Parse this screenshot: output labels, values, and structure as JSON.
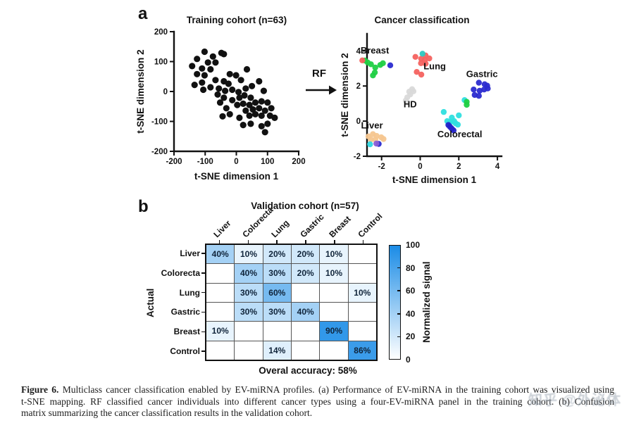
{
  "panel_a": {
    "label": "a",
    "rf_label": "RF"
  },
  "panel_b": {
    "label": "b"
  },
  "watermark": {
    "text": "知乎 @外泌体"
  },
  "caption": {
    "figure_label": "Figure 6.",
    "line1": "Multiclass cancer classification enabled by EV-miRNA profiles. (a) Performance of EV-miRNA in the training cohort was visualized using",
    "line2": "t-SNE mapping. RF classified cancer individuals into different cancer types using a four-EV-miRNA panel in the training cohort. (b) Confusion",
    "line3": "matrix summarizing the cancer classification results in the validation cohort."
  },
  "chart_data": [
    {
      "id": "training",
      "type": "scatter",
      "title": "Training cohort (n=63)",
      "xlabel": "t-SNE dimension 1",
      "ylabel": "t-SNE dimension 2",
      "xlim": [
        -200,
        200
      ],
      "ylim": [
        -200,
        200
      ],
      "x_ticks": [
        -200,
        -100,
        0,
        100,
        200
      ],
      "y_ticks": [
        200,
        100,
        0,
        -100,
        -200
      ],
      "series": [
        {
          "name": "samples",
          "color": "#111111",
          "points": [
            [
              -102,
              133
            ],
            [
              -48,
              129
            ],
            [
              -40,
              125
            ],
            [
              -75,
              117
            ],
            [
              -126,
              109
            ],
            [
              -91,
              97
            ],
            [
              -67,
              97
            ],
            [
              -142,
              85
            ],
            [
              -110,
              77
            ],
            [
              -83,
              74
            ],
            [
              -126,
              58
            ],
            [
              -102,
              54
            ],
            [
              34,
              74
            ],
            [
              -21,
              58
            ],
            [
              -1,
              54
            ],
            [
              -134,
              22
            ],
            [
              -110,
              30
            ],
            [
              -67,
              38
            ],
            [
              -40,
              34
            ],
            [
              -25,
              26
            ],
            [
              15,
              38
            ],
            [
              73,
              34
            ],
            [
              -106,
              6
            ],
            [
              -83,
              14
            ],
            [
              -56,
              10
            ],
            [
              -36,
              2
            ],
            [
              -13,
              6
            ],
            [
              7,
              -2
            ],
            [
              30,
              10
            ],
            [
              50,
              18
            ],
            [
              88,
              2
            ],
            [
              -40,
              -21
            ],
            [
              -13,
              -29
            ],
            [
              10,
              -21
            ],
            [
              26,
              -13
            ],
            [
              46,
              -21
            ],
            [
              -52,
              -37
            ],
            [
              3,
              -45
            ],
            [
              22,
              -41
            ],
            [
              42,
              -45
            ],
            [
              61,
              -37
            ],
            [
              81,
              -33
            ],
            [
              100,
              -37
            ],
            [
              -32,
              -56
            ],
            [
              30,
              -64
            ],
            [
              53,
              -60
            ],
            [
              73,
              -56
            ],
            [
              92,
              -64
            ],
            [
              112,
              -56
            ],
            [
              -44,
              -83
            ],
            [
              -21,
              -76
            ],
            [
              10,
              -88
            ],
            [
              42,
              -81
            ],
            [
              61,
              -76
            ],
            [
              81,
              -81
            ],
            [
              108,
              -81
            ],
            [
              22,
              -112
            ],
            [
              46,
              -108
            ],
            [
              81,
              -116
            ],
            [
              100,
              -108
            ],
            [
              123,
              -88
            ],
            [
              92,
              -136
            ],
            [
              -60,
              -10
            ]
          ]
        }
      ]
    },
    {
      "id": "classification",
      "type": "scatter",
      "title": "Cancer classification",
      "xlabel": "t-SNE dimension 1",
      "ylabel": "t-SNE dimension 2",
      "xlim": [
        -2.8,
        4.2
      ],
      "ylim": [
        -2,
        4.9
      ],
      "x_ticks": [
        -2,
        0,
        2,
        4
      ],
      "y_ticks": [
        4,
        2,
        0,
        -2
      ],
      "series": [
        {
          "name": "Breast",
          "color": "#1fcf43",
          "points": [
            [
              -2.86,
              3.45
            ],
            [
              -2.72,
              3.34
            ],
            [
              -2.55,
              3.24
            ],
            [
              -2.33,
              3.05
            ],
            [
              -2.07,
              3.2
            ],
            [
              -1.93,
              3.3
            ],
            [
              -2.35,
              2.77
            ],
            [
              -2.45,
              2.6
            ]
          ]
        },
        {
          "name": "Breast-outlier-red",
          "color": "#f4625f",
          "points": [
            [
              -3.0,
              3.46
            ]
          ]
        },
        {
          "name": "Breast-outlier-blue",
          "color": "#2b2bd0",
          "points": [
            [
              -1.55,
              3.18
            ]
          ]
        },
        {
          "name": "Lung",
          "color": "#f4625f",
          "points": [
            [
              -0.25,
              3.66
            ],
            [
              0.28,
              3.74
            ],
            [
              0.05,
              3.55
            ],
            [
              0.24,
              3.48
            ],
            [
              0.47,
              3.57
            ],
            [
              0.04,
              3.3
            ],
            [
              0.28,
              3.27
            ],
            [
              -0.18,
              2.8
            ],
            [
              0.06,
              2.65
            ]
          ]
        },
        {
          "name": "Lung-outlier-teal",
          "color": "#2cc8c0",
          "points": [
            [
              0.12,
              3.84
            ]
          ]
        },
        {
          "name": "HD",
          "color": "#d9d9d9",
          "points": [
            [
              -0.42,
              1.82
            ],
            [
              -0.57,
              1.68
            ],
            [
              -0.35,
              1.7
            ],
            [
              -0.67,
              1.35
            ],
            [
              -0.75,
              1.17
            ],
            [
              -0.52,
              1.52
            ]
          ]
        },
        {
          "name": "Liver",
          "color": "#f6c68f",
          "points": [
            [
              -2.68,
              -0.87
            ],
            [
              -2.45,
              -0.74
            ],
            [
              -2.26,
              -0.84
            ],
            [
              -2.02,
              -0.92
            ],
            [
              -1.9,
              -1.02
            ],
            [
              -2.55,
              -1.05
            ],
            [
              -2.32,
              -1.06
            ]
          ]
        },
        {
          "name": "Liver-outlier-cyan",
          "color": "#2fd7e2",
          "points": [
            [
              -2.6,
              -1.32
            ]
          ]
        },
        {
          "name": "Liver-outlier-blue",
          "color": "#2b2bd0",
          "points": [
            [
              -2.15,
              -1.3
            ]
          ]
        },
        {
          "name": "Liver-outlier-purple",
          "color": "#8a5fd6",
          "points": [
            [
              -2.27,
              -1.28
            ]
          ]
        },
        {
          "name": "Colorectal",
          "color": "#2fdfdf",
          "points": [
            [
              1.22,
              0.52
            ],
            [
              2.0,
              0.33
            ],
            [
              1.64,
              0.2
            ],
            [
              1.4,
              0.0
            ],
            [
              1.57,
              -0.05
            ],
            [
              1.76,
              0.0
            ],
            [
              1.83,
              -0.12
            ],
            [
              1.95,
              -0.2
            ],
            [
              1.5,
              -0.12
            ],
            [
              2.3,
              1.2
            ]
          ]
        },
        {
          "name": "Colorectal-outlier-blue",
          "color": "#2222c8",
          "points": [
            [
              1.46,
              -0.22
            ],
            [
              1.55,
              -0.33
            ],
            [
              1.64,
              -0.43
            ],
            [
              1.73,
              -0.53
            ]
          ]
        },
        {
          "name": "Mid-green",
          "color": "#1fcf43",
          "points": [
            [
              2.41,
              1.1
            ],
            [
              2.41,
              0.93
            ]
          ]
        },
        {
          "name": "Gastric",
          "color": "#2b2bd0",
          "points": [
            [
              3.04,
              2.19
            ],
            [
              3.34,
              2.1
            ],
            [
              2.77,
              1.8
            ],
            [
              3.08,
              1.73
            ],
            [
              3.31,
              1.8
            ],
            [
              3.5,
              1.86
            ],
            [
              2.82,
              1.49
            ],
            [
              3.04,
              1.44
            ],
            [
              3.47,
              2.02
            ]
          ]
        }
      ],
      "annotations": [
        {
          "text": "Breast",
          "color": "#3bd169",
          "x": -2.35,
          "y": 3.85
        },
        {
          "text": "Lung",
          "color": "#e8413f",
          "x": 0.75,
          "y": 2.95
        },
        {
          "text": "Gastric",
          "color": "#2222bb",
          "x": 3.2,
          "y": 2.5
        },
        {
          "text": "HD",
          "color": "#cfcfcf",
          "x": -0.52,
          "y": 0.78
        },
        {
          "text": "Liver",
          "color": "#f8cf9e",
          "x": -2.5,
          "y": -0.42
        },
        {
          "text": "Colorectal",
          "color": "#45dfe8",
          "x": 2.05,
          "y": -0.92
        }
      ]
    },
    {
      "id": "confusion",
      "type": "heatmap",
      "title": "Validation cohort (n=57)",
      "ylabel": "Actual",
      "columns": [
        "Liver",
        "Colorecta",
        "Lung",
        "Gastric",
        "Breast",
        "Control"
      ],
      "rows": [
        "Liver",
        "Colorecta",
        "Lung",
        "Gastric",
        "Breast",
        "Control"
      ],
      "values": [
        [
          40,
          10,
          20,
          20,
          10,
          null
        ],
        [
          null,
          40,
          30,
          20,
          10,
          null
        ],
        [
          null,
          30,
          60,
          null,
          null,
          10
        ],
        [
          null,
          30,
          30,
          40,
          null,
          null
        ],
        [
          10,
          null,
          null,
          null,
          90,
          null
        ],
        [
          null,
          null,
          14,
          null,
          null,
          86
        ]
      ],
      "unit": "%",
      "footer": "Overal accuracy: 58%",
      "colorbar": {
        "label": "Normalized signal",
        "ticks": [
          0,
          20,
          40,
          60,
          80,
          100
        ],
        "min_color": "#ffffff",
        "max_color": "#1b8ce6"
      }
    }
  ]
}
